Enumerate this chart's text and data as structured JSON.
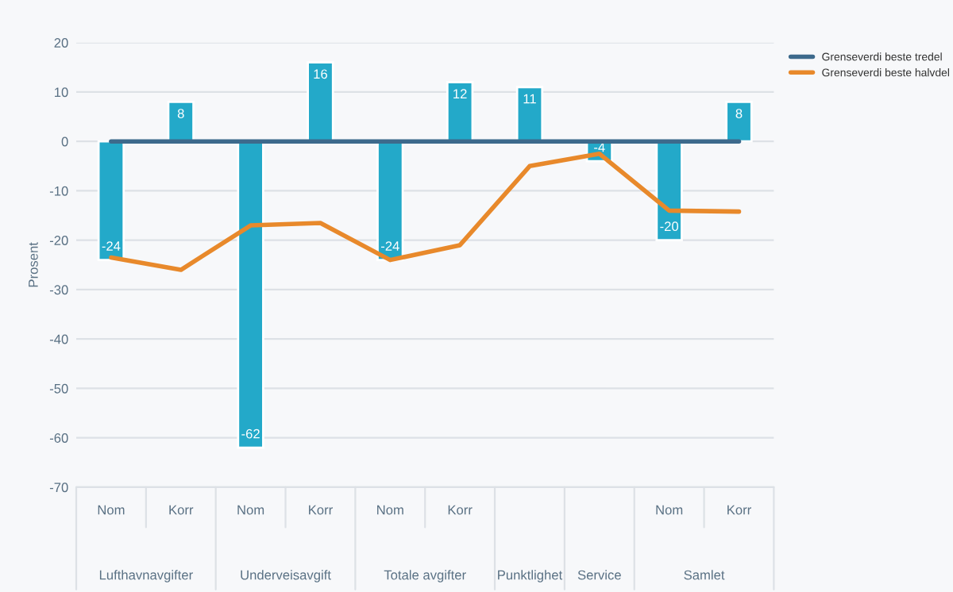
{
  "chart_data": {
    "type": "bar",
    "ylabel": "Prosent",
    "categories": [
      "Nom",
      "Korr",
      "Nom",
      "Korr",
      "Nom",
      "Korr",
      null,
      null,
      "Nom",
      "Korr"
    ],
    "series": [
      {
        "color": "#23a9c9",
        "values": [
          -24,
          8,
          -62,
          16,
          -24,
          12,
          11,
          -4,
          -20,
          8
        ],
        "value_labels": [
          "-24",
          "8",
          "-62",
          "16",
          "-24",
          "12",
          "11",
          "-4",
          "-20",
          "8"
        ]
      },
      {
        "type": "line",
        "name": "Grenseverdi beste tredel",
        "color": "#3d6a8c",
        "values": [
          0,
          0,
          0,
          0,
          0,
          0,
          0,
          0,
          0,
          0
        ]
      },
      {
        "type": "line",
        "name": "Grenseverdi beste halvdel",
        "color": "#e8892b",
        "values": [
          -23.5,
          -26,
          -17,
          -16.5,
          -24,
          -21,
          -5,
          -2.5,
          -14,
          -14.2
        ]
      }
    ],
    "annotations": [
      "Lufthavnavgifter",
      "Underveisavgift",
      "Totale avgifter",
      "Punktlighet",
      "Service",
      "Samlet"
    ],
    "ylim": [
      -70,
      20
    ],
    "yticks": [
      -70,
      -60,
      -50,
      -40,
      -30,
      -20,
      -10,
      0,
      10,
      20
    ],
    "grid": "y",
    "legend": "top right",
    "marker": "none",
    "line_style": "solid"
  }
}
